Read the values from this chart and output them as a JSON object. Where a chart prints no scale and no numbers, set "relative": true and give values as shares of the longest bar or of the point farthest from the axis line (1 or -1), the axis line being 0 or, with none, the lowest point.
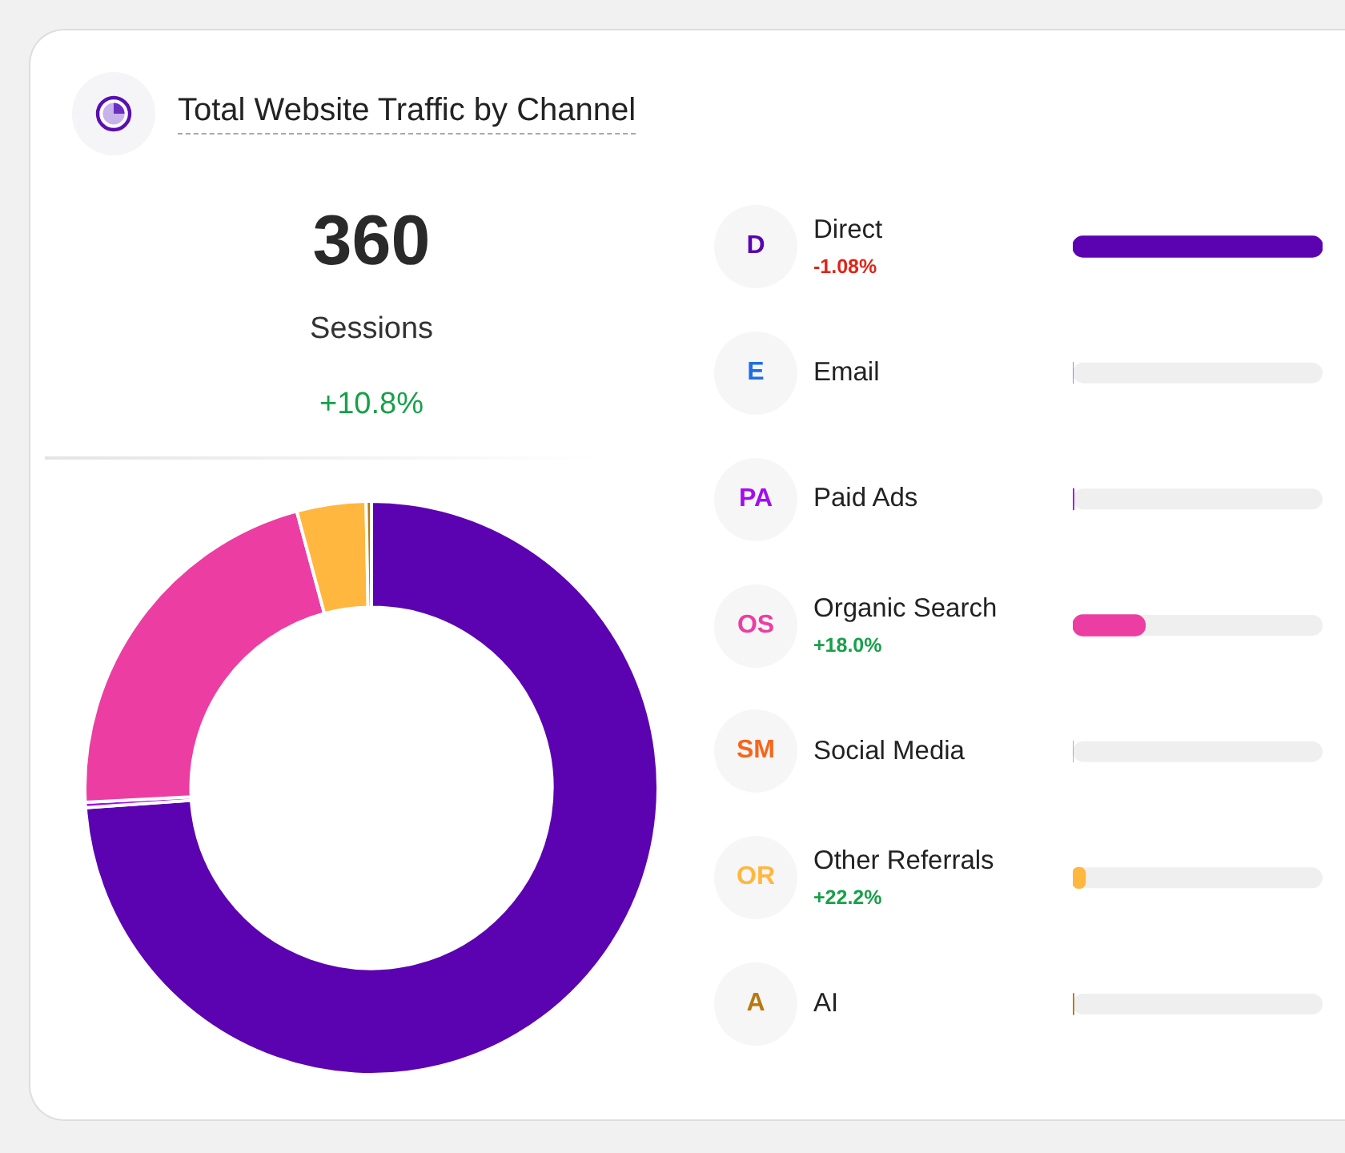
{
  "chart_data": [
    {
      "type": "donut",
      "title": "Total Website Traffic by Channel",
      "annotations": [
        "360",
        "Sessions",
        "+10.8%"
      ],
      "categories": [
        null,
        null,
        null,
        null,
        null,
        null,
        null
      ],
      "values": [
        73.9,
        0,
        0.3,
        21.6,
        0,
        3.9,
        0.3
      ],
      "colors": [
        "#5b03b0",
        "#1e6fe6",
        "#a30cf0",
        "#ec3ea2",
        "#f5661c",
        "#ffb73f",
        "#b7790f"
      ]
    },
    {
      "type": "bar",
      "orientation": "horizontal",
      "relative": true,
      "categories": [
        "Direct\n-1.08%",
        "Email",
        "Paid Ads",
        "Organic Search\n+18.0%",
        "Social Media",
        "Other Referrals\n+22.2%",
        "AI"
      ],
      "values": [
        1,
        0,
        0.004,
        0.29,
        0,
        0.05,
        0.004
      ],
      "colors": [
        "#5b03b0",
        "#1e6fe6",
        "#a30cf0",
        "#ec3ea2",
        "#f5661c",
        "#ffb73f",
        "#b7790f"
      ],
      "annotations": [
        "D",
        "E",
        "PA",
        "OS",
        "SM",
        "OR",
        "A"
      ]
    }
  ]
}
